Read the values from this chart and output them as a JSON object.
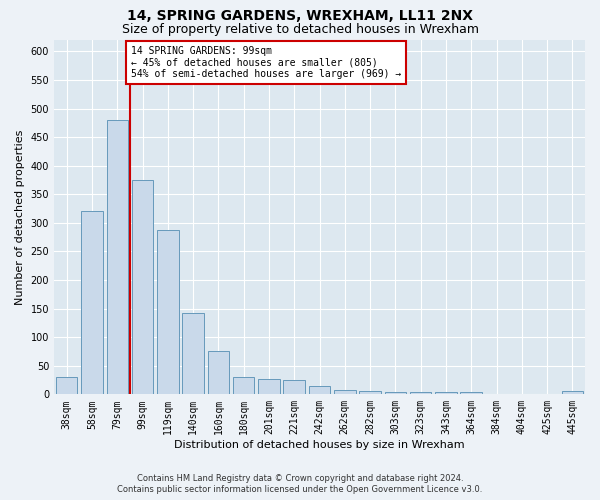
{
  "title": "14, SPRING GARDENS, WREXHAM, LL11 2NX",
  "subtitle": "Size of property relative to detached houses in Wrexham",
  "xlabel": "Distribution of detached houses by size in Wrexham",
  "ylabel": "Number of detached properties",
  "categories": [
    "38sqm",
    "58sqm",
    "79sqm",
    "99sqm",
    "119sqm",
    "140sqm",
    "160sqm",
    "180sqm",
    "201sqm",
    "221sqm",
    "242sqm",
    "262sqm",
    "282sqm",
    "303sqm",
    "323sqm",
    "343sqm",
    "364sqm",
    "384sqm",
    "404sqm",
    "425sqm",
    "445sqm"
  ],
  "values": [
    30,
    320,
    480,
    375,
    288,
    143,
    75,
    30,
    27,
    25,
    14,
    8,
    5,
    4,
    4,
    4,
    4,
    0,
    0,
    0,
    5
  ],
  "bar_color": "#c9d9ea",
  "bar_edge_color": "#6699bb",
  "highlight_line_color": "#cc0000",
  "annotation_text": "14 SPRING GARDENS: 99sqm\n← 45% of detached houses are smaller (805)\n54% of semi-detached houses are larger (969) →",
  "annotation_box_color": "#ffffff",
  "annotation_border_color": "#cc0000",
  "ylim": [
    0,
    620
  ],
  "yticks": [
    0,
    50,
    100,
    150,
    200,
    250,
    300,
    350,
    400,
    450,
    500,
    550,
    600
  ],
  "footer_line1": "Contains HM Land Registry data © Crown copyright and database right 2024.",
  "footer_line2": "Contains public sector information licensed under the Open Government Licence v3.0.",
  "bg_color": "#edf2f7",
  "plot_bg_color": "#dde8f0",
  "grid_color": "#ffffff",
  "title_fontsize": 10,
  "subtitle_fontsize": 9,
  "xlabel_fontsize": 8,
  "ylabel_fontsize": 8,
  "annot_fontsize": 7,
  "tick_fontsize": 7
}
